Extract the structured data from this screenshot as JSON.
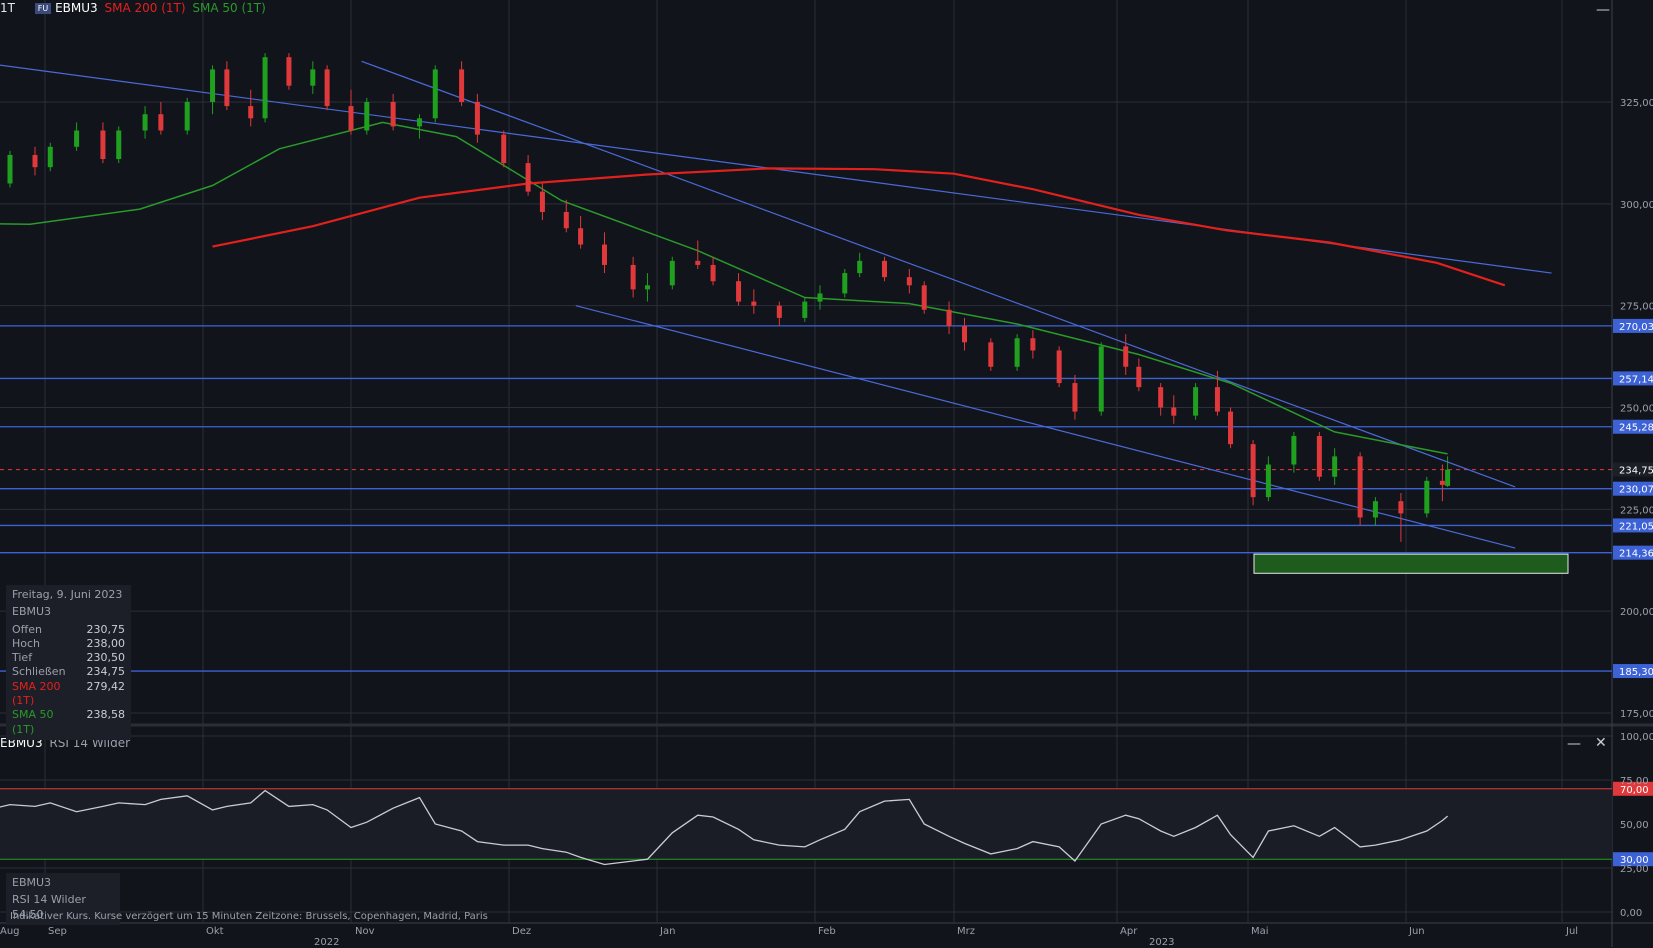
{
  "header": {
    "interval": "1T",
    "badge": "FU",
    "symbol": "EBMU3",
    "sma200_label": "SMA 200 (1T)",
    "sma50_label": "SMA 50 (1T)",
    "minimize_icon": "minimize-icon"
  },
  "rsi_header": {
    "symbol": "EBMU3",
    "indicator": "RSI 14 Wilder",
    "minimize_icon": "minimize-icon",
    "close_icon": "close-icon"
  },
  "info_box": {
    "date": "Freitag, 9. Juni 2023",
    "symbol": "EBMU3",
    "rows": [
      {
        "label": "Offen",
        "value": "230,75"
      },
      {
        "label": "Hoch",
        "value": "238,00"
      },
      {
        "label": "Tief",
        "value": "230,50"
      },
      {
        "label": "Schließen",
        "value": "234,75"
      },
      {
        "label": "SMA 200 (1T)",
        "value": "279,42"
      },
      {
        "label": "SMA 50 (1T)",
        "value": "238,58"
      }
    ]
  },
  "rsi_info_box": {
    "symbol": "EBMU3",
    "value_line": "RSI 14 Wilder 54,50"
  },
  "footer": {
    "note": "Indikativer Kurs. Kurse verzögert um 15 Minuten   Zeitzone: Brussels, Copenhagen, Madrid, Paris"
  },
  "colors": {
    "background": "#11141b",
    "grid": "#2a2e38",
    "up": "#1fa01f",
    "down": "#e0393b",
    "sma200": "#e3211c",
    "sma50": "#2a9a2a",
    "trendline": "#4b6ad8",
    "level": "#3d62d6",
    "target_zone": "#1d5c1d",
    "rsi": "#c9ccd4"
  },
  "chart_data": [
    {
      "type": "candlestick",
      "symbol": "EBMU3",
      "y_axis_ticks": [
        "175,00",
        "200,00",
        "225,00",
        "250,00",
        "275,00",
        "300,00",
        "325,00"
      ],
      "ylim": [
        172,
        339
      ],
      "x_month_labels": [
        "Aug",
        "Sep",
        "Okt",
        "Nov",
        "Dez",
        "Jan",
        "Feb",
        "Mrz",
        "Apr",
        "Mai",
        "Jun",
        "Jul"
      ],
      "x_year_labels": [
        "2022",
        "2023"
      ],
      "horizontal_levels": [
        {
          "value": 270.03,
          "label": "270,03"
        },
        {
          "value": 257.14,
          "label": "257,14"
        },
        {
          "value": 245.28,
          "label": "245,28"
        },
        {
          "value": 230.07,
          "label": "230,07"
        },
        {
          "value": 221.05,
          "label": "221,05"
        },
        {
          "value": 214.36,
          "label": "214,36"
        },
        {
          "value": 185.3,
          "label": "185,30"
        }
      ],
      "last_close": {
        "value": 234.75,
        "label": "234,75"
      },
      "target_zone": {
        "from_date": "2023-05-01",
        "to_date": "2023-07-01",
        "y_range": [
          209.3,
          214.0
        ]
      },
      "sma200": [
        [
          "2022-10-03",
          289.5
        ],
        [
          "2022-10-24",
          294.5
        ],
        [
          "2022-11-14",
          301.5
        ],
        [
          "2022-12-05",
          305.0
        ],
        [
          "2022-12-30",
          307.2
        ],
        [
          "2023-01-23",
          308.7
        ],
        [
          "2023-02-13",
          308.5
        ],
        [
          "2023-03-01",
          307.4
        ],
        [
          "2023-03-16",
          303.6
        ],
        [
          "2023-04-06",
          297.3
        ],
        [
          "2023-04-26",
          293.5
        ],
        [
          "2023-05-17",
          290.5
        ],
        [
          "2023-06-07",
          285.5
        ],
        [
          "2023-06-20",
          280.0
        ]
      ],
      "sma50": [
        [
          "2022-07-25",
          298.0
        ],
        [
          "2022-08-08",
          295.3
        ],
        [
          "2022-08-29",
          295.0
        ],
        [
          "2022-09-19",
          298.7
        ],
        [
          "2022-10-03",
          304.5
        ],
        [
          "2022-10-17",
          313.5
        ],
        [
          "2022-11-07",
          320.0
        ],
        [
          "2022-11-21",
          316.5
        ],
        [
          "2022-12-12",
          300.8
        ],
        [
          "2023-01-09",
          288.5
        ],
        [
          "2023-01-30",
          277.0
        ],
        [
          "2023-02-20",
          275.5
        ],
        [
          "2023-03-13",
          270.5
        ],
        [
          "2023-04-06",
          263.0
        ],
        [
          "2023-04-27",
          256.0
        ],
        [
          "2023-05-18",
          244.0
        ],
        [
          "2023-06-09",
          238.6
        ]
      ],
      "trendlines": [
        {
          "from": [
            "2022-07-25",
            341.0
          ],
          "to": [
            "2023-06-29",
            283.0
          ]
        },
        {
          "from": [
            "2022-11-03",
            335.0
          ],
          "to": [
            "2023-06-22",
            230.5
          ]
        },
        {
          "from": [
            "2022-12-15",
            275.0
          ],
          "to": [
            "2023-06-22",
            215.5
          ]
        }
      ],
      "ohlc": [
        [
          "2022-07-25",
          305,
          308,
          297,
          300
        ],
        [
          "2022-08-01",
          300,
          304,
          295,
          296
        ],
        [
          "2022-08-04",
          296,
          306,
          295,
          305
        ],
        [
          "2022-08-09",
          305,
          309,
          301,
          302
        ],
        [
          "2022-08-12",
          302,
          307,
          299,
          306
        ],
        [
          "2022-08-17",
          306,
          309,
          302,
          303
        ],
        [
          "2022-08-22",
          303,
          306,
          299,
          305
        ],
        [
          "2022-08-25",
          305,
          313,
          304,
          312
        ],
        [
          "2022-08-30",
          312,
          314,
          307,
          309
        ],
        [
          "2022-09-02",
          309,
          315,
          308,
          314
        ],
        [
          "2022-09-07",
          314,
          320,
          313,
          318
        ],
        [
          "2022-09-12",
          318,
          320,
          310,
          311
        ],
        [
          "2022-09-15",
          311,
          319,
          310,
          318
        ],
        [
          "2022-09-20",
          318,
          324,
          316,
          322
        ],
        [
          "2022-09-23",
          322,
          325,
          317,
          318
        ],
        [
          "2022-09-28",
          318,
          326,
          317,
          325
        ],
        [
          "2022-10-03",
          325,
          334,
          322,
          333
        ],
        [
          "2022-10-06",
          333,
          335,
          323,
          324
        ],
        [
          "2022-10-11",
          324,
          328,
          319,
          321
        ],
        [
          "2022-10-14",
          321,
          337,
          320,
          336
        ],
        [
          "2022-10-19",
          336,
          337,
          328,
          329
        ],
        [
          "2022-10-24",
          329,
          335,
          327,
          333
        ],
        [
          "2022-10-27",
          333,
          334,
          323,
          324
        ],
        [
          "2022-11-01",
          324,
          328,
          317,
          318
        ],
        [
          "2022-11-04",
          318,
          326,
          317,
          325
        ],
        [
          "2022-11-09",
          325,
          327,
          318,
          319
        ],
        [
          "2022-11-14",
          319,
          322,
          316,
          321
        ],
        [
          "2022-11-17",
          321,
          334,
          320,
          333
        ],
        [
          "2022-11-22",
          333,
          335,
          324,
          325
        ],
        [
          "2022-11-25",
          325,
          327,
          315,
          317
        ],
        [
          "2022-11-30",
          317,
          318,
          309,
          310
        ],
        [
          "2022-12-05",
          310,
          312,
          302,
          303
        ],
        [
          "2022-12-08",
          303,
          305,
          296,
          298
        ],
        [
          "2022-12-13",
          298,
          301,
          293,
          294
        ],
        [
          "2022-12-16",
          294,
          297,
          289,
          290
        ],
        [
          "2022-12-21",
          290,
          293,
          283,
          285
        ],
        [
          "2022-12-27",
          285,
          287,
          277,
          279
        ],
        [
          "2022-12-30",
          279,
          283,
          276,
          280
        ],
        [
          "2023-01-04",
          280,
          287,
          279,
          286
        ],
        [
          "2023-01-09",
          286,
          291,
          284,
          285
        ],
        [
          "2023-01-12",
          285,
          287,
          280,
          281
        ],
        [
          "2023-01-17",
          281,
          283,
          275,
          276
        ],
        [
          "2023-01-20",
          276,
          279,
          273,
          275
        ],
        [
          "2023-01-25",
          275,
          276,
          270,
          272
        ],
        [
          "2023-01-30",
          272,
          277,
          271,
          276
        ],
        [
          "2023-02-02",
          276,
          280,
          274,
          278
        ],
        [
          "2023-02-07",
          278,
          284,
          277,
          283
        ],
        [
          "2023-02-10",
          283,
          288,
          282,
          286
        ],
        [
          "2023-02-15",
          286,
          287,
          281,
          282
        ],
        [
          "2023-02-20",
          282,
          284,
          278,
          280
        ],
        [
          "2023-02-23",
          280,
          281,
          273,
          274
        ],
        [
          "2023-02-28",
          274,
          276,
          268,
          270
        ],
        [
          "2023-03-03",
          270,
          272,
          264,
          266
        ],
        [
          "2023-03-08",
          266,
          267,
          259,
          260
        ],
        [
          "2023-03-13",
          260,
          268,
          259,
          267
        ],
        [
          "2023-03-16",
          267,
          269,
          262,
          264
        ],
        [
          "2023-03-21",
          264,
          265,
          255,
          256
        ],
        [
          "2023-03-24",
          256,
          258,
          247,
          249
        ],
        [
          "2023-03-29",
          249,
          266,
          248,
          265
        ],
        [
          "2023-04-03",
          265,
          268,
          258,
          260
        ],
        [
          "2023-04-06",
          260,
          262,
          254,
          255
        ],
        [
          "2023-04-11",
          255,
          256,
          248,
          250
        ],
        [
          "2023-04-14",
          250,
          253,
          246,
          248
        ],
        [
          "2023-04-19",
          248,
          256,
          247,
          255
        ],
        [
          "2023-04-24",
          255,
          259,
          248,
          249
        ],
        [
          "2023-04-27",
          249,
          250,
          240,
          241
        ],
        [
          "2023-05-02",
          241,
          242,
          226,
          228
        ],
        [
          "2023-05-05",
          228,
          238,
          227,
          236
        ],
        [
          "2023-05-10",
          236,
          244,
          234,
          243
        ],
        [
          "2023-05-15",
          243,
          244,
          232,
          233
        ],
        [
          "2023-05-18",
          233,
          240,
          231,
          238
        ],
        [
          "2023-05-23",
          238,
          239,
          221,
          223
        ],
        [
          "2023-05-26",
          223,
          228,
          221,
          227
        ],
        [
          "2023-05-31",
          227,
          229,
          217,
          224
        ],
        [
          "2023-06-05",
          224,
          233,
          223,
          232
        ],
        [
          "2023-06-08",
          232,
          236,
          227,
          231
        ],
        [
          "2023-06-09",
          230.75,
          238,
          230.5,
          234.75
        ]
      ]
    },
    {
      "type": "line",
      "name": "RSI 14 Wilder",
      "y_axis_ticks": [
        "0,00",
        "25,00",
        "50,00",
        "75,00",
        "100,00"
      ],
      "ylim": [
        0,
        100
      ],
      "overbought": {
        "value": 70,
        "label": "70,00"
      },
      "oversold": {
        "value": 30,
        "label": "30,00"
      },
      "x": [
        "2022-07-25",
        "2022-08-01",
        "2022-08-04",
        "2022-08-09",
        "2022-08-12",
        "2022-08-17",
        "2022-08-22",
        "2022-08-25",
        "2022-08-30",
        "2022-09-02",
        "2022-09-07",
        "2022-09-12",
        "2022-09-15",
        "2022-09-20",
        "2022-09-23",
        "2022-09-28",
        "2022-10-03",
        "2022-10-06",
        "2022-10-11",
        "2022-10-14",
        "2022-10-19",
        "2022-10-24",
        "2022-10-27",
        "2022-11-01",
        "2022-11-04",
        "2022-11-09",
        "2022-11-14",
        "2022-11-17",
        "2022-11-22",
        "2022-11-25",
        "2022-11-30",
        "2022-12-05",
        "2022-12-08",
        "2022-12-13",
        "2022-12-16",
        "2022-12-21",
        "2022-12-27",
        "2022-12-30",
        "2023-01-04",
        "2023-01-09",
        "2023-01-12",
        "2023-01-17",
        "2023-01-20",
        "2023-01-25",
        "2023-01-30",
        "2023-02-02",
        "2023-02-07",
        "2023-02-10",
        "2023-02-15",
        "2023-02-20",
        "2023-02-23",
        "2023-02-28",
        "2023-03-03",
        "2023-03-08",
        "2023-03-13",
        "2023-03-16",
        "2023-03-21",
        "2023-03-24",
        "2023-03-29",
        "2023-04-03",
        "2023-04-06",
        "2023-04-11",
        "2023-04-14",
        "2023-04-19",
        "2023-04-24",
        "2023-04-27",
        "2023-05-02",
        "2023-05-05",
        "2023-05-10",
        "2023-05-15",
        "2023-05-18",
        "2023-05-23",
        "2023-05-26",
        "2023-05-31",
        "2023-06-05",
        "2023-06-08",
        "2023-06-09"
      ],
      "values": [
        58,
        60,
        64,
        62,
        61,
        63,
        59,
        61,
        60,
        62,
        57,
        60,
        62,
        61,
        64,
        66,
        58,
        60,
        62,
        69,
        60,
        61,
        58,
        48,
        51,
        59,
        65,
        50,
        46,
        40,
        38,
        38,
        36,
        34,
        31,
        27,
        29,
        30,
        45,
        55,
        54,
        47,
        41,
        38,
        37,
        41,
        47,
        57,
        63,
        64,
        50,
        43,
        39,
        33,
        36,
        40,
        37,
        29,
        50,
        55,
        53,
        46,
        43,
        48,
        55,
        44,
        31,
        46,
        49,
        43,
        48,
        37,
        38,
        41,
        46,
        52,
        54.5
      ]
    }
  ]
}
